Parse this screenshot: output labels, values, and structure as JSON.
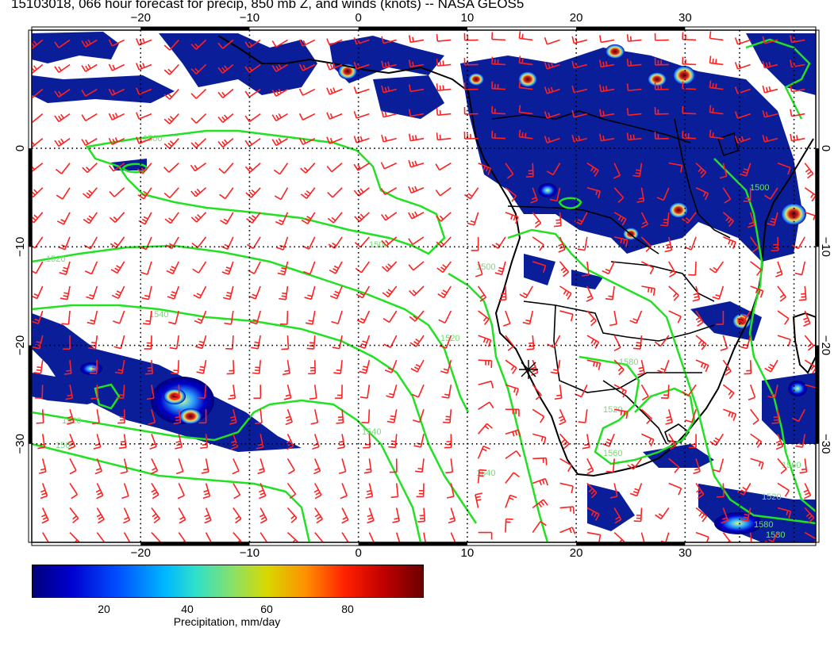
{
  "title": "15103018, 066 hour forecast for precip, 850 mb Z, and winds (knots) -- NASA GEOS5",
  "colors": {
    "contour": "#22e022",
    "wind_barb": "#ff2020",
    "coast": "#000000",
    "precip_low": "#00007a",
    "precip_high": "#6a0000"
  },
  "map": {
    "lon_range": [
      -30,
      42
    ],
    "lat_range": [
      -40,
      12
    ],
    "lon_ticks": [
      -20,
      -10,
      0,
      10,
      20,
      30
    ],
    "lat_ticks": [
      0,
      -10,
      -20,
      -30
    ],
    "lon_tick_labels": [
      "−20",
      "−10",
      "0",
      "10",
      "20",
      "30"
    ],
    "lat_tick_labels": [
      "0",
      "−10",
      "−20",
      "−30"
    ],
    "contour_labels": [
      "1520",
      "1500",
      "1540",
      "1520",
      "1520",
      "1540",
      "1500",
      "1560",
      "1540",
      "1500",
      "1580",
      "1520",
      "1500",
      "1520",
      "1560",
      "1580",
      "1560",
      "1580"
    ],
    "marker_symbol": "*"
  },
  "colorbar": {
    "range": [
      0,
      100
    ],
    "tick_values": [
      20,
      40,
      60,
      80
    ],
    "tick_labels": [
      "20",
      "40",
      "60",
      "80"
    ],
    "label": "Precipitation, mm/day"
  },
  "icons": {
    "marker": "asterisk-marker-icon"
  }
}
